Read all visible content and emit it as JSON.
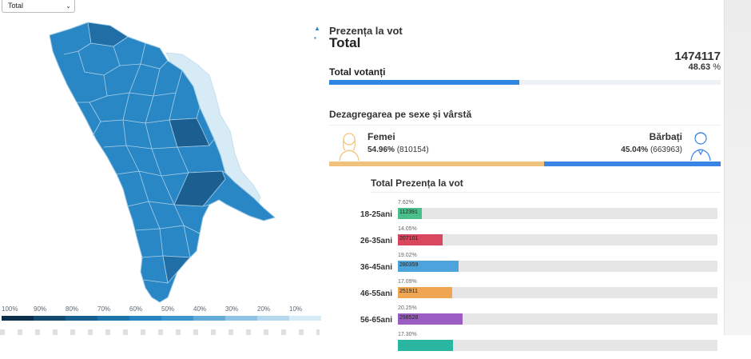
{
  "filter": {
    "selected": "Total",
    "arrow_icon": "chevron-down-icon"
  },
  "map": {
    "legend": [
      "100%",
      "90%",
      "80%",
      "70%",
      "60%",
      "50%",
      "40%",
      "30%",
      "20%",
      "10%"
    ],
    "legend_colors": [
      "#0b2f4b",
      "#124a70",
      "#175f8e",
      "#1d73aa",
      "#2784bf",
      "#3d95cf",
      "#63acda",
      "#8cc3e6",
      "#b4d9ef",
      "#d6ebf6"
    ],
    "region_colors": [
      "#2a87c5",
      "#237ab5",
      "#1f6ea6",
      "#3393cd",
      "#1a5f90"
    ],
    "outside_color": "#d6ebf6"
  },
  "panel": {
    "subtitle": "Prezența la vot",
    "title": "Total",
    "voters_count": "1474117",
    "turnout_percent": "48.63",
    "percent_sign": "%",
    "total_label": "Total votanți",
    "turnout_fraction": 0.4863,
    "breakdown_title": "Dezagregarea pe sexe și vârstă",
    "female": {
      "label": "Femei",
      "percent": "54.96%",
      "count": "(810154)",
      "share": 0.5496,
      "color": "#f1c27c"
    },
    "male": {
      "label": "Bărbați",
      "percent": "45.04%",
      "count": "(663963)",
      "share": 0.4504,
      "color": "#3a84e6"
    },
    "age_title": "Total Prezența la vot",
    "age_groups": [
      {
        "label": "18-25ani",
        "percent": "7.62%",
        "value": "112391",
        "share": 0.0762,
        "color": "#4bbf8b"
      },
      {
        "label": "26-35ani",
        "percent": "14.05%",
        "value": "207101",
        "share": 0.1405,
        "color": "#d9475f"
      },
      {
        "label": "36-45ani",
        "percent": "19.02%",
        "value": "280359",
        "share": 0.1902,
        "color": "#4da3dc"
      },
      {
        "label": "46-55ani",
        "percent": "17.09%",
        "value": "251911",
        "share": 0.1709,
        "color": "#f0a552"
      },
      {
        "label": "56-65ani",
        "percent": "20.25%",
        "value": "298528",
        "share": 0.2025,
        "color": "#9b5cc4"
      },
      {
        "label": "",
        "percent": "17.30%",
        "value": "",
        "share": 0.173,
        "color": "#2bb5a3"
      }
    ]
  }
}
